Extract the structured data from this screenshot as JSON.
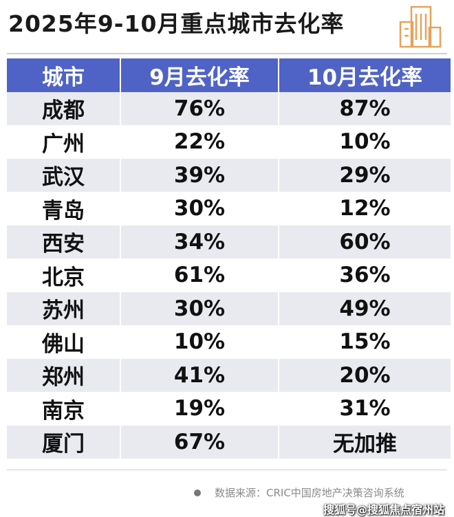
{
  "header": {
    "title": "2025年9-10月重点城市去化率"
  },
  "table": {
    "columns": [
      "城市",
      "9月去化率",
      "10月去化率"
    ],
    "rows": [
      [
        "成都",
        "76%",
        "87%"
      ],
      [
        "广州",
        "22%",
        "10%"
      ],
      [
        "武汉",
        "39%",
        "29%"
      ],
      [
        "青岛",
        "30%",
        "12%"
      ],
      [
        "西安",
        "34%",
        "60%"
      ],
      [
        "北京",
        "61%",
        "36%"
      ],
      [
        "苏州",
        "30%",
        "49%"
      ],
      [
        "佛山",
        "10%",
        "15%"
      ],
      [
        "郑州",
        "41%",
        "20%"
      ],
      [
        "南京",
        "19%",
        "31%"
      ],
      [
        "厦门",
        "67%",
        "无加推"
      ]
    ]
  },
  "footer": {
    "source": "数据来源：CRIC中国房地产决策咨询系统",
    "watermark": "搜狐号@搜狐焦点宿州站"
  }
}
